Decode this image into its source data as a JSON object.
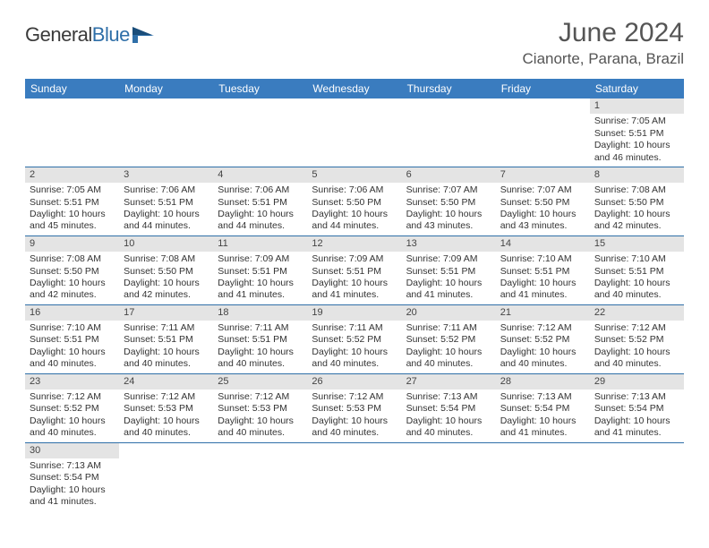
{
  "brand": {
    "general": "General",
    "blue": "Blue"
  },
  "title": "June 2024",
  "location": "Cianorte, Parana, Brazil",
  "colors": {
    "header_bg": "#3a7cbf",
    "header_fg": "#ffffff",
    "daynum_bg": "#e4e4e4",
    "row_divider": "#2f6fa8",
    "text": "#333333",
    "brand_blue": "#2f6fa8"
  },
  "day_headers": [
    "Sunday",
    "Monday",
    "Tuesday",
    "Wednesday",
    "Thursday",
    "Friday",
    "Saturday"
  ],
  "weeks": [
    [
      null,
      null,
      null,
      null,
      null,
      null,
      {
        "n": "1",
        "rise": "7:05 AM",
        "set": "5:51 PM",
        "dl": "10 hours and 46 minutes."
      }
    ],
    [
      {
        "n": "2",
        "rise": "7:05 AM",
        "set": "5:51 PM",
        "dl": "10 hours and 45 minutes."
      },
      {
        "n": "3",
        "rise": "7:06 AM",
        "set": "5:51 PM",
        "dl": "10 hours and 44 minutes."
      },
      {
        "n": "4",
        "rise": "7:06 AM",
        "set": "5:51 PM",
        "dl": "10 hours and 44 minutes."
      },
      {
        "n": "5",
        "rise": "7:06 AM",
        "set": "5:50 PM",
        "dl": "10 hours and 44 minutes."
      },
      {
        "n": "6",
        "rise": "7:07 AM",
        "set": "5:50 PM",
        "dl": "10 hours and 43 minutes."
      },
      {
        "n": "7",
        "rise": "7:07 AM",
        "set": "5:50 PM",
        "dl": "10 hours and 43 minutes."
      },
      {
        "n": "8",
        "rise": "7:08 AM",
        "set": "5:50 PM",
        "dl": "10 hours and 42 minutes."
      }
    ],
    [
      {
        "n": "9",
        "rise": "7:08 AM",
        "set": "5:50 PM",
        "dl": "10 hours and 42 minutes."
      },
      {
        "n": "10",
        "rise": "7:08 AM",
        "set": "5:50 PM",
        "dl": "10 hours and 42 minutes."
      },
      {
        "n": "11",
        "rise": "7:09 AM",
        "set": "5:51 PM",
        "dl": "10 hours and 41 minutes."
      },
      {
        "n": "12",
        "rise": "7:09 AM",
        "set": "5:51 PM",
        "dl": "10 hours and 41 minutes."
      },
      {
        "n": "13",
        "rise": "7:09 AM",
        "set": "5:51 PM",
        "dl": "10 hours and 41 minutes."
      },
      {
        "n": "14",
        "rise": "7:10 AM",
        "set": "5:51 PM",
        "dl": "10 hours and 41 minutes."
      },
      {
        "n": "15",
        "rise": "7:10 AM",
        "set": "5:51 PM",
        "dl": "10 hours and 40 minutes."
      }
    ],
    [
      {
        "n": "16",
        "rise": "7:10 AM",
        "set": "5:51 PM",
        "dl": "10 hours and 40 minutes."
      },
      {
        "n": "17",
        "rise": "7:11 AM",
        "set": "5:51 PM",
        "dl": "10 hours and 40 minutes."
      },
      {
        "n": "18",
        "rise": "7:11 AM",
        "set": "5:51 PM",
        "dl": "10 hours and 40 minutes."
      },
      {
        "n": "19",
        "rise": "7:11 AM",
        "set": "5:52 PM",
        "dl": "10 hours and 40 minutes."
      },
      {
        "n": "20",
        "rise": "7:11 AM",
        "set": "5:52 PM",
        "dl": "10 hours and 40 minutes."
      },
      {
        "n": "21",
        "rise": "7:12 AM",
        "set": "5:52 PM",
        "dl": "10 hours and 40 minutes."
      },
      {
        "n": "22",
        "rise": "7:12 AM",
        "set": "5:52 PM",
        "dl": "10 hours and 40 minutes."
      }
    ],
    [
      {
        "n": "23",
        "rise": "7:12 AM",
        "set": "5:52 PM",
        "dl": "10 hours and 40 minutes."
      },
      {
        "n": "24",
        "rise": "7:12 AM",
        "set": "5:53 PM",
        "dl": "10 hours and 40 minutes."
      },
      {
        "n": "25",
        "rise": "7:12 AM",
        "set": "5:53 PM",
        "dl": "10 hours and 40 minutes."
      },
      {
        "n": "26",
        "rise": "7:12 AM",
        "set": "5:53 PM",
        "dl": "10 hours and 40 minutes."
      },
      {
        "n": "27",
        "rise": "7:13 AM",
        "set": "5:54 PM",
        "dl": "10 hours and 40 minutes."
      },
      {
        "n": "28",
        "rise": "7:13 AM",
        "set": "5:54 PM",
        "dl": "10 hours and 41 minutes."
      },
      {
        "n": "29",
        "rise": "7:13 AM",
        "set": "5:54 PM",
        "dl": "10 hours and 41 minutes."
      }
    ],
    [
      {
        "n": "30",
        "rise": "7:13 AM",
        "set": "5:54 PM",
        "dl": "10 hours and 41 minutes."
      },
      null,
      null,
      null,
      null,
      null,
      null
    ]
  ],
  "labels": {
    "sunrise": "Sunrise:",
    "sunset": "Sunset:",
    "daylight": "Daylight:"
  }
}
